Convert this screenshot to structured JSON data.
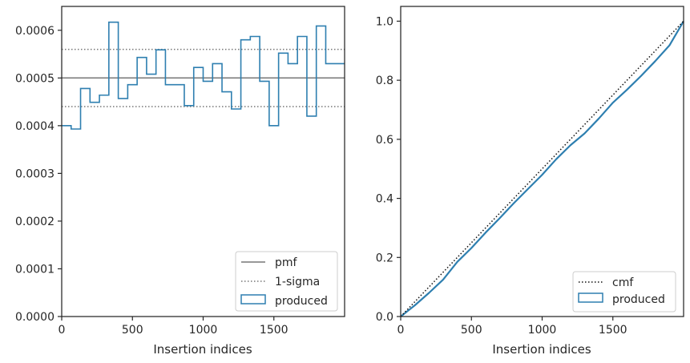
{
  "chart_data": [
    {
      "type": "histogram-step",
      "xlabel": "Insertion indices",
      "ylabel": "",
      "xlim": [
        0,
        2000
      ],
      "ylim": [
        0,
        0.00065
      ],
      "xticks": [
        0,
        500,
        1000,
        1500
      ],
      "yticks": [
        0,
        0.0001,
        0.0002,
        0.0003,
        0.0004,
        0.0005,
        0.0006
      ],
      "ytick_labels": [
        "0.0000",
        "0.0001",
        "0.0002",
        "0.0003",
        "0.0004",
        "0.0005",
        "0.0006"
      ],
      "bin_width": 66.67,
      "produced": [
        0.0004,
        0.000393,
        0.000478,
        0.000449,
        0.000464,
        0.000617,
        0.000457,
        0.000486,
        0.000543,
        0.000508,
        0.000559,
        0.000486,
        0.000486,
        0.000442,
        0.000522,
        0.000493,
        0.00053,
        0.000471,
        0.000435,
        0.00058,
        0.000587,
        0.000493,
        0.0004,
        0.000552,
        0.00053,
        0.000587,
        0.00042,
        0.000609,
        0.00053,
        0.00053
      ],
      "pmf": 0.0005,
      "sigma_low": 0.00044,
      "sigma_high": 0.00056,
      "legend": [
        "pmf",
        "1-sigma",
        "produced"
      ],
      "legend_position": "lower-right",
      "colors": {
        "produced": "#2e7fb0",
        "pmf": "#777777",
        "sigma": "#777777"
      }
    },
    {
      "type": "line",
      "xlabel": "Insertion indices",
      "ylabel": "",
      "xlim": [
        0,
        2000
      ],
      "ylim": [
        0,
        1.05
      ],
      "xticks": [
        0,
        500,
        1000,
        1500
      ],
      "yticks": [
        0,
        0.2,
        0.4,
        0.6,
        0.8,
        1.0
      ],
      "ytick_labels": [
        "0.0",
        "0.2",
        "0.4",
        "0.6",
        "0.8",
        "1.0"
      ],
      "cmf": {
        "x": [
          0,
          2000
        ],
        "y": [
          0,
          1
        ]
      },
      "produced": {
        "x": [
          0,
          100,
          200,
          300,
          400,
          500,
          600,
          700,
          800,
          900,
          1000,
          1100,
          1200,
          1300,
          1400,
          1500,
          1600,
          1700,
          1800,
          1900,
          2000
        ],
        "y": [
          0,
          0.038,
          0.08,
          0.125,
          0.185,
          0.232,
          0.284,
          0.333,
          0.384,
          0.432,
          0.48,
          0.533,
          0.58,
          0.62,
          0.67,
          0.724,
          0.768,
          0.815,
          0.865,
          0.918,
          1.0
        ]
      },
      "legend": [
        "cmf",
        "produced"
      ],
      "legend_position": "lower-right",
      "colors": {
        "produced": "#2e7fb0",
        "cmf": "#111111"
      }
    }
  ]
}
